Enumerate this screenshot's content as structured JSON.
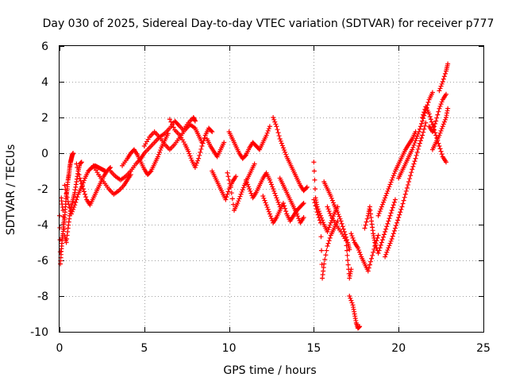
{
  "chart_data": {
    "type": "scatter",
    "title": "Day 030 of 2025, Sidereal Day-to-day VTEC variation (SDTVAR) for receiver p777",
    "xlabel": "GPS time / hours",
    "ylabel": "SDTVAR / TECUs",
    "xlim": [
      0,
      25
    ],
    "ylim": [
      -10,
      6
    ],
    "xticks": [
      "0",
      "5",
      "10",
      "15",
      "20",
      "25"
    ],
    "yticks": [
      "-10",
      "-8",
      "-6",
      "-4",
      "-2",
      "0",
      "2",
      "4",
      "6"
    ],
    "grid": true,
    "marker": "plus",
    "color": "#ff0000",
    "series": [
      {
        "points": [
          [
            0.0,
            -3.5
          ],
          [
            0.05,
            -6.2
          ],
          [
            0.1,
            -5.5
          ],
          [
            0.15,
            -4.9
          ],
          [
            0.2,
            -4.5
          ],
          [
            0.25,
            -4.0
          ],
          [
            0.3,
            -3.6
          ],
          [
            0.35,
            -3.0
          ],
          [
            0.4,
            -2.4
          ],
          [
            0.45,
            -2.0
          ],
          [
            0.5,
            -1.5
          ],
          [
            0.55,
            -1.2
          ],
          [
            0.6,
            -0.8
          ],
          [
            0.65,
            -0.5
          ],
          [
            0.7,
            -0.3
          ],
          [
            0.75,
            -0.1
          ],
          [
            0.8,
            0.0
          ],
          [
            0.1,
            -2.5
          ],
          [
            0.2,
            -3.2
          ],
          [
            0.3,
            -4.6
          ],
          [
            0.4,
            -5.0
          ],
          [
            0.5,
            -4.2
          ],
          [
            0.6,
            -3.5
          ],
          [
            0.7,
            -3.0
          ],
          [
            0.8,
            -2.6
          ],
          [
            0.9,
            -2.2
          ],
          [
            1.0,
            -1.6
          ],
          [
            1.1,
            -1.0
          ],
          [
            1.2,
            -0.6
          ],
          [
            1.3,
            -0.5
          ],
          [
            0.3,
            -1.8
          ],
          [
            0.5,
            -2.7
          ],
          [
            0.7,
            -3.4
          ],
          [
            0.9,
            -2.9
          ],
          [
            1.1,
            -2.3
          ],
          [
            1.3,
            -1.9
          ],
          [
            1.5,
            -1.4
          ],
          [
            1.7,
            -1.0
          ],
          [
            1.9,
            -0.8
          ],
          [
            2.1,
            -0.7
          ],
          [
            2.3,
            -0.8
          ],
          [
            2.5,
            -0.9
          ],
          [
            2.7,
            -1.0
          ],
          [
            1.0,
            -0.6
          ],
          [
            1.2,
            -1.4
          ],
          [
            1.4,
            -2.0
          ],
          [
            1.6,
            -2.6
          ],
          [
            1.8,
            -2.9
          ],
          [
            2.0,
            -2.5
          ],
          [
            2.2,
            -2.1
          ],
          [
            2.4,
            -1.7
          ],
          [
            2.6,
            -1.3
          ],
          [
            2.8,
            -1.0
          ],
          [
            3.0,
            -0.8
          ],
          [
            2.0,
            -0.7
          ],
          [
            2.3,
            -1.2
          ],
          [
            2.6,
            -1.6
          ],
          [
            2.9,
            -2.0
          ],
          [
            3.2,
            -2.3
          ],
          [
            3.5,
            -2.1
          ],
          [
            3.8,
            -1.8
          ],
          [
            4.0,
            -1.5
          ],
          [
            4.2,
            -1.2
          ],
          [
            3.0,
            -1.0
          ],
          [
            3.3,
            -1.3
          ],
          [
            3.6,
            -1.5
          ],
          [
            3.9,
            -1.3
          ],
          [
            4.2,
            -1.0
          ],
          [
            4.5,
            -0.6
          ],
          [
            4.8,
            -0.3
          ],
          [
            5.0,
            0.0
          ],
          [
            5.3,
            0.3
          ],
          [
            5.6,
            0.6
          ],
          [
            5.9,
            0.9
          ],
          [
            6.2,
            1.1
          ],
          [
            6.5,
            1.4
          ],
          [
            6.8,
            1.8
          ],
          [
            7.0,
            1.6
          ],
          [
            7.3,
            1.3
          ],
          [
            7.6,
            1.7
          ],
          [
            7.9,
            2.0
          ],
          [
            8.0,
            1.8
          ],
          [
            3.7,
            -0.7
          ],
          [
            4.0,
            -0.3
          ],
          [
            4.2,
            0.0
          ],
          [
            4.4,
            0.2
          ],
          [
            4.6,
            -0.1
          ],
          [
            4.8,
            -0.5
          ],
          [
            5.0,
            -0.9
          ],
          [
            5.2,
            -1.2
          ],
          [
            5.4,
            -1.0
          ],
          [
            5.6,
            -0.6
          ],
          [
            5.8,
            -0.2
          ],
          [
            6.0,
            0.3
          ],
          [
            6.2,
            0.7
          ],
          [
            6.4,
            1.1
          ],
          [
            5.0,
            0.4
          ],
          [
            5.3,
            0.9
          ],
          [
            5.6,
            1.2
          ],
          [
            5.9,
            0.9
          ],
          [
            6.2,
            0.5
          ],
          [
            6.5,
            0.2
          ],
          [
            6.8,
            0.5
          ],
          [
            7.1,
            0.9
          ],
          [
            7.4,
            1.3
          ],
          [
            7.7,
            1.6
          ],
          [
            8.0,
            1.4
          ],
          [
            8.2,
            1.0
          ],
          [
            8.4,
            0.6
          ],
          [
            6.5,
            1.9
          ],
          [
            6.8,
            1.3
          ],
          [
            7.1,
            1.0
          ],
          [
            7.4,
            0.5
          ],
          [
            7.6,
            0.1
          ],
          [
            7.8,
            -0.4
          ],
          [
            8.0,
            -0.8
          ],
          [
            8.2,
            -0.3
          ],
          [
            8.4,
            0.4
          ],
          [
            8.6,
            1.0
          ],
          [
            8.8,
            1.4
          ],
          [
            9.0,
            1.2
          ],
          [
            8.7,
            0.8
          ],
          [
            8.9,
            0.4
          ],
          [
            9.1,
            0.1
          ],
          [
            9.3,
            -0.2
          ],
          [
            9.5,
            0.2
          ],
          [
            9.7,
            0.6
          ],
          [
            9.0,
            -1.0
          ],
          [
            9.2,
            -1.4
          ],
          [
            9.4,
            -1.8
          ],
          [
            9.6,
            -2.2
          ],
          [
            9.8,
            -2.6
          ],
          [
            10.0,
            -2.0
          ],
          [
            10.2,
            -1.6
          ],
          [
            10.4,
            -1.3
          ],
          [
            9.9,
            -1.1
          ],
          [
            10.1,
            -1.9
          ],
          [
            10.3,
            -3.2
          ],
          [
            10.5,
            -2.8
          ],
          [
            10.7,
            -2.3
          ],
          [
            10.9,
            -1.8
          ],
          [
            11.1,
            -1.4
          ],
          [
            11.3,
            -1.0
          ],
          [
            11.5,
            -0.6
          ],
          [
            10.0,
            1.2
          ],
          [
            10.2,
            0.8
          ],
          [
            10.4,
            0.4
          ],
          [
            10.6,
            0.0
          ],
          [
            10.8,
            -0.3
          ],
          [
            11.0,
            -0.1
          ],
          [
            11.2,
            0.3
          ],
          [
            11.4,
            0.6
          ],
          [
            11.6,
            0.4
          ],
          [
            11.8,
            0.2
          ],
          [
            12.0,
            0.6
          ],
          [
            12.2,
            1.0
          ],
          [
            12.4,
            1.5
          ],
          [
            11.0,
            -1.5
          ],
          [
            11.2,
            -2.0
          ],
          [
            11.4,
            -2.5
          ],
          [
            11.6,
            -2.2
          ],
          [
            11.8,
            -1.8
          ],
          [
            12.0,
            -1.4
          ],
          [
            12.2,
            -1.1
          ],
          [
            12.4,
            -1.5
          ],
          [
            12.6,
            -2.0
          ],
          [
            12.8,
            -2.5
          ],
          [
            13.0,
            -3.0
          ],
          [
            12.0,
            -2.4
          ],
          [
            12.2,
            -2.9
          ],
          [
            12.4,
            -3.4
          ],
          [
            12.6,
            -3.9
          ],
          [
            12.8,
            -3.6
          ],
          [
            13.0,
            -3.2
          ],
          [
            13.2,
            -2.8
          ],
          [
            13.4,
            -3.4
          ],
          [
            13.6,
            -3.8
          ],
          [
            13.8,
            -3.5
          ],
          [
            14.0,
            -3.2
          ],
          [
            14.2,
            -3.0
          ],
          [
            14.4,
            -2.8
          ],
          [
            12.6,
            2.0
          ],
          [
            12.8,
            1.5
          ],
          [
            13.0,
            0.8
          ],
          [
            13.2,
            0.3
          ],
          [
            13.4,
            -0.2
          ],
          [
            13.6,
            -0.6
          ],
          [
            13.8,
            -1.0
          ],
          [
            14.0,
            -1.4
          ],
          [
            14.2,
            -1.8
          ],
          [
            14.4,
            -2.1
          ],
          [
            14.6,
            -1.9
          ],
          [
            13.0,
            -1.4
          ],
          [
            13.2,
            -1.8
          ],
          [
            13.4,
            -2.2
          ],
          [
            13.6,
            -2.6
          ],
          [
            13.8,
            -3.0
          ],
          [
            14.0,
            -3.4
          ],
          [
            14.2,
            -3.9
          ],
          [
            14.4,
            -3.6
          ],
          [
            15.0,
            -0.5
          ],
          [
            15.1,
            -2.5
          ],
          [
            15.2,
            -3.0
          ],
          [
            15.4,
            -3.5
          ],
          [
            15.6,
            -4.0
          ],
          [
            15.8,
            -4.4
          ],
          [
            16.0,
            -3.9
          ],
          [
            16.2,
            -3.4
          ],
          [
            16.4,
            -3.0
          ],
          [
            15.0,
            -2.6
          ],
          [
            15.2,
            -3.3
          ],
          [
            15.4,
            -3.9
          ],
          [
            15.5,
            -7.0
          ],
          [
            15.6,
            -6.2
          ],
          [
            15.8,
            -5.2
          ],
          [
            16.0,
            -4.6
          ],
          [
            16.2,
            -4.2
          ],
          [
            16.4,
            -3.8
          ],
          [
            15.6,
            -1.6
          ],
          [
            15.8,
            -2.0
          ],
          [
            16.0,
            -2.4
          ],
          [
            16.2,
            -2.9
          ],
          [
            16.4,
            -3.3
          ],
          [
            16.6,
            -3.8
          ],
          [
            16.8,
            -4.4
          ],
          [
            17.0,
            -5.0
          ],
          [
            17.1,
            -5.4
          ],
          [
            15.8,
            -3.0
          ],
          [
            16.0,
            -3.5
          ],
          [
            16.3,
            -4.0
          ],
          [
            16.6,
            -4.4
          ],
          [
            16.9,
            -4.9
          ],
          [
            17.0,
            -6.0
          ],
          [
            17.1,
            -7.0
          ],
          [
            17.2,
            -6.5
          ],
          [
            17.1,
            -8.0
          ],
          [
            17.3,
            -8.5
          ],
          [
            17.4,
            -9.0
          ],
          [
            17.5,
            -9.5
          ],
          [
            17.6,
            -9.8
          ],
          [
            17.7,
            -9.7
          ],
          [
            17.2,
            -4.5
          ],
          [
            17.4,
            -5.0
          ],
          [
            17.6,
            -5.3
          ],
          [
            17.8,
            -5.8
          ],
          [
            18.0,
            -6.2
          ],
          [
            18.2,
            -6.6
          ],
          [
            18.4,
            -5.9
          ],
          [
            18.6,
            -5.2
          ],
          [
            18.8,
            -4.6
          ],
          [
            18.0,
            -4.2
          ],
          [
            18.2,
            -3.5
          ],
          [
            18.3,
            -3.0
          ],
          [
            18.4,
            -3.8
          ],
          [
            18.5,
            -4.5
          ],
          [
            18.6,
            -5.0
          ],
          [
            18.8,
            -5.6
          ],
          [
            19.0,
            -5.0
          ],
          [
            19.2,
            -4.4
          ],
          [
            19.4,
            -3.8
          ],
          [
            19.6,
            -3.2
          ],
          [
            19.8,
            -2.6
          ],
          [
            18.8,
            -3.5
          ],
          [
            19.0,
            -3.0
          ],
          [
            19.2,
            -2.5
          ],
          [
            19.4,
            -2.0
          ],
          [
            19.6,
            -1.5
          ],
          [
            19.8,
            -1.0
          ],
          [
            20.0,
            -0.6
          ],
          [
            20.2,
            -0.2
          ],
          [
            20.4,
            0.2
          ],
          [
            20.6,
            0.5
          ],
          [
            20.8,
            0.8
          ],
          [
            21.0,
            1.2
          ],
          [
            19.2,
            -5.8
          ],
          [
            19.4,
            -5.3
          ],
          [
            19.6,
            -4.8
          ],
          [
            19.8,
            -4.2
          ],
          [
            20.0,
            -3.6
          ],
          [
            20.2,
            -3.0
          ],
          [
            20.4,
            -2.3
          ],
          [
            20.6,
            -1.6
          ],
          [
            20.8,
            -0.9
          ],
          [
            21.0,
            -0.3
          ],
          [
            21.2,
            0.4
          ],
          [
            21.4,
            1.0
          ],
          [
            21.6,
            1.7
          ],
          [
            20.0,
            -1.4
          ],
          [
            20.2,
            -1.0
          ],
          [
            20.4,
            -0.6
          ],
          [
            20.6,
            -0.2
          ],
          [
            20.8,
            0.2
          ],
          [
            21.0,
            0.7
          ],
          [
            21.2,
            1.2
          ],
          [
            21.4,
            1.8
          ],
          [
            21.6,
            2.4
          ],
          [
            21.8,
            3.0
          ],
          [
            22.0,
            3.4
          ],
          [
            21.4,
            2.0
          ],
          [
            21.6,
            2.6
          ],
          [
            21.8,
            2.2
          ],
          [
            22.0,
            1.6
          ],
          [
            22.2,
            1.0
          ],
          [
            22.4,
            0.4
          ],
          [
            22.6,
            -0.2
          ],
          [
            22.8,
            -0.5
          ],
          [
            21.8,
            1.5
          ],
          [
            22.0,
            1.2
          ],
          [
            22.2,
            1.8
          ],
          [
            22.4,
            2.5
          ],
          [
            22.6,
            3.0
          ],
          [
            22.8,
            3.3
          ],
          [
            22.0,
            0.2
          ],
          [
            22.2,
            0.6
          ],
          [
            22.4,
            1.0
          ],
          [
            22.6,
            1.5
          ],
          [
            22.8,
            2.0
          ],
          [
            22.9,
            2.5
          ],
          [
            22.4,
            3.5
          ],
          [
            22.6,
            4.0
          ],
          [
            22.8,
            4.6
          ],
          [
            22.9,
            5.0
          ]
        ]
      }
    ]
  }
}
